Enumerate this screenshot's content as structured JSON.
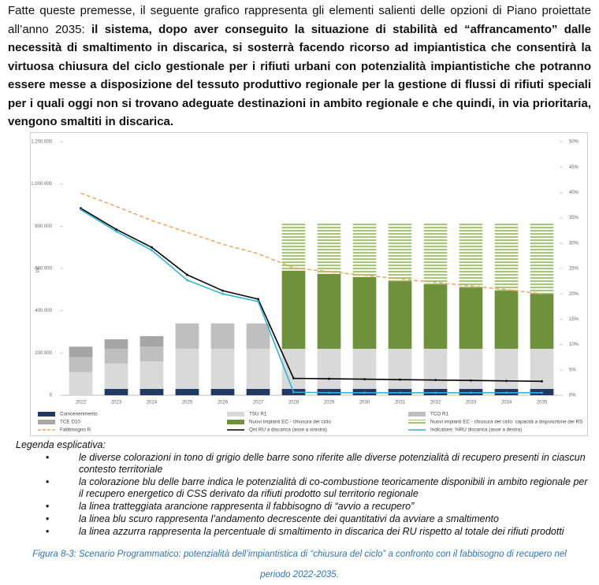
{
  "paragraph": {
    "intro": "Fatte queste premesse, il seguente grafico rappresenta gli elementi salienti delle opzioni di Piano proiettate all’anno 2035: ",
    "bold": "il sistema, dopo aver conseguito la situazione di stabilità ed “affrancamento” dalle necessità di smaltimento in discarica, si sosterrà facendo ricorso ad impiantistica che consentirà la virtuosa chiusura del ciclo gestionale per i rifiuti urbani con potenzialità impiantistiche che potranno essere messe a disposizione del tessuto produttivo regionale per la gestione di flussi di rifiuti speciali per i quali oggi non si trovano adeguate destinazioni in ambito regionale e che quindi, in via prioritaria, vengono smaltiti in discarica."
  },
  "chart_data": {
    "type": "bar",
    "y_label": "t/a",
    "categories": [
      "2022",
      "2023",
      "2024",
      "2025",
      "2026",
      "2027",
      "2028",
      "2029",
      "2030",
      "2031",
      "2032",
      "2033",
      "2034",
      "2035"
    ],
    "ylim": [
      0,
      1200000
    ],
    "yticks": [
      0,
      {
        "value": 200000,
        "label": "200.000"
      },
      {
        "value": 400000,
        "label": "400.000"
      },
      {
        "value": 600000,
        "label": "600.000"
      },
      {
        "value": 800000,
        "label": "800.000"
      },
      {
        "value": 1000000,
        "label": "1.000.000"
      },
      {
        "value": 1200000,
        "label": "1.200.000"
      }
    ],
    "y2lim": [
      0,
      50
    ],
    "y2ticks": [
      {
        "value": 0,
        "label": "0%"
      },
      {
        "value": 5,
        "label": "5%"
      },
      {
        "value": 10,
        "label": "10%"
      },
      {
        "value": 15,
        "label": "15%"
      },
      {
        "value": 20,
        "label": "20%"
      },
      {
        "value": 25,
        "label": "25%"
      },
      {
        "value": 30,
        "label": "30%"
      },
      {
        "value": 35,
        "label": "35%"
      },
      {
        "value": 40,
        "label": "40%"
      },
      {
        "value": 45,
        "label": "45%"
      },
      {
        "value": 50,
        "label": "50%"
      }
    ],
    "series": [
      {
        "name": "Coincenerimento",
        "type": "bar",
        "color": "#1f3864",
        "values": [
          0,
          30000,
          30000,
          30000,
          30000,
          30000,
          30000,
          30000,
          30000,
          30000,
          30000,
          30000,
          30000,
          30000
        ]
      },
      {
        "name": "TSU R1",
        "type": "bar",
        "color": "#d9d9d9",
        "values": [
          110000,
          120000,
          130000,
          190000,
          190000,
          190000,
          190000,
          190000,
          190000,
          190000,
          190000,
          190000,
          190000,
          190000
        ]
      },
      {
        "name": "TCO R1",
        "type": "bar",
        "color": "#bfbfbf",
        "values": [
          70000,
          70000,
          70000,
          120000,
          120000,
          120000,
          0,
          0,
          0,
          0,
          0,
          0,
          0,
          0
        ]
      },
      {
        "name": "TCE D10",
        "type": "bar",
        "color": "#a6a6a6",
        "values": [
          50000,
          45000,
          50000,
          0,
          0,
          0,
          0,
          0,
          0,
          0,
          0,
          0,
          0,
          0
        ]
      },
      {
        "name": "Nuovi impianti EC - chiusura del ciclo",
        "type": "bar",
        "color": "#70913b",
        "values": [
          0,
          0,
          0,
          0,
          0,
          0,
          370000,
          355000,
          340000,
          320000,
          305000,
          290000,
          275000,
          260000
        ]
      },
      {
        "name": "Nuovi impianti EC - chiusura del ciclo: capacità a disposizione dei RS",
        "type": "bar",
        "color": "#a9c47f",
        "pattern": "stripes",
        "values": [
          0,
          0,
          0,
          0,
          0,
          0,
          225000,
          240000,
          255000,
          275000,
          290000,
          305000,
          320000,
          335000
        ]
      },
      {
        "name": "Fabbisogno R",
        "type": "line",
        "color": "#f4a460",
        "dash": true,
        "values": [
          957000,
          894000,
          827000,
          771000,
          715000,
          670000,
          603000,
          585000,
          568000,
          551000,
          534000,
          517000,
          500000,
          480000
        ]
      },
      {
        "name": "Qnt RU a discarica (asse a sinistra)",
        "type": "line",
        "color": "#000000",
        "values": [
          885000,
          785000,
          700000,
          570000,
          495000,
          455000,
          80000,
          78000,
          76000,
          74000,
          72000,
          70000,
          68000,
          66000
        ]
      },
      {
        "name": "Indicatore: %RU discarica (asse a destra)",
        "type": "line",
        "color": "#2eb4d9",
        "axis": "y2",
        "values": [
          36.6,
          32.3,
          28.6,
          22.7,
          20,
          18.5,
          0.6,
          0.5,
          0.5,
          0.5,
          0.5,
          0.5,
          0.5,
          0.5
        ]
      }
    ]
  },
  "legend_note": {
    "title": "Legenda esplicativa:",
    "items": [
      "le diverse colorazioni in tono di grigio delle barre sono riferite alle diverse potenzialità di recupero presenti in ciascun contesto territoriale",
      "la colorazione blu delle barre indica le potenzialità di co-combustione teoricamente disponibili in ambito regionale per il recupero energetico di CSS derivato da rifiuti prodotto sul territorio regionale",
      "la linea tratteggiata arancione rappresenta il fabbisogno di “avvio a recupero”",
      "la linea blu scuro rappresenta l’andamento decrescente dei quantitativi da avviare a smaltimento",
      "la linea azzurra rappresenta la percentuale di smaltimento in discarica dei RU rispetto al totale dei rifiuti prodotti"
    ]
  },
  "caption": "Figura 8-3: Scenario Programmatico: potenzialità dell’impiantistica di “chiusura del ciclo” a confronto con il fabbisogno di recupero nel periodo 2022-2035."
}
